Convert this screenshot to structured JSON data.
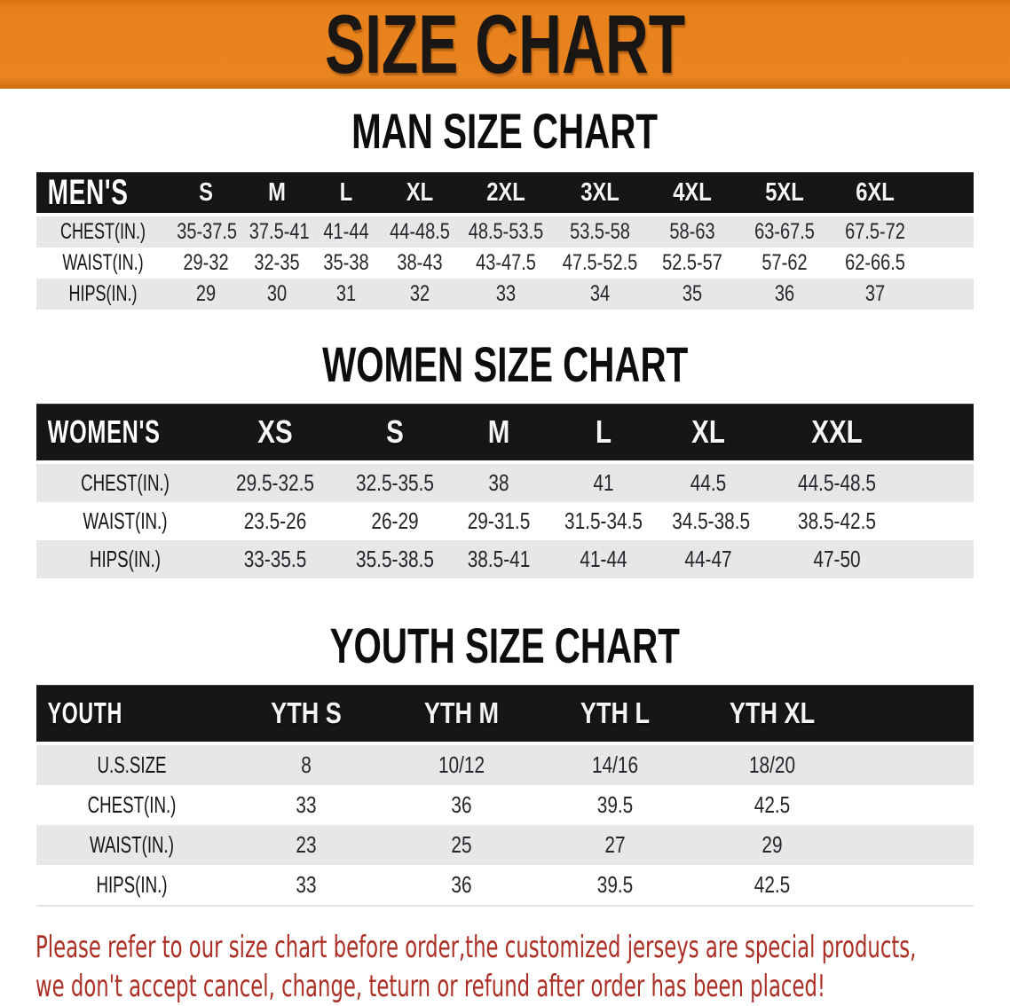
{
  "banner": {
    "title": "SIZE CHART",
    "bg_color": "#E8811B",
    "title_color": "#191613"
  },
  "sections": {
    "men_heading": "MAN SIZE CHART",
    "women_heading": "WOMEN SIZE CHART",
    "youth_heading": "YOUTH SIZE CHART"
  },
  "tables": {
    "men": {
      "header": [
        "MEN'S",
        "S",
        "M",
        "L",
        "XL",
        "2XL",
        "3XL",
        "4XL",
        "5XL",
        "6XL"
      ],
      "rows": [
        [
          "CHEST(IN.)",
          "35-37.5",
          "37.5-41",
          "41-44",
          "44-48.5",
          "48.5-53.5",
          "53.5-58",
          "58-63",
          "63-67.5",
          "67.5-72"
        ],
        [
          "WAIST(IN.)",
          "29-32",
          "32-35",
          "35-38",
          "38-43",
          "43-47.5",
          "47.5-52.5",
          "52.5-57",
          "57-62",
          "62-66.5"
        ],
        [
          "HIPS(IN.)",
          "29",
          "30",
          "31",
          "32",
          "33",
          "34",
          "35",
          "36",
          "37"
        ]
      ]
    },
    "women": {
      "header": [
        "WOMEN'S",
        "XS",
        "S",
        "M",
        "L",
        "XL",
        "XXL"
      ],
      "rows": [
        [
          "CHEST(IN.)",
          "29.5-32.5",
          "32.5-35.5",
          "38",
          "41",
          "44.5",
          "44.5-48.5"
        ],
        [
          "WAIST(IN.)",
          "23.5-26",
          "26-29",
          "29-31.5",
          "31.5-34.5",
          "34.5-38.5",
          "38.5-42.5"
        ],
        [
          "HIPS(IN.)",
          "33-35.5",
          "35.5-38.5",
          "38.5-41",
          "41-44",
          "44-47",
          "47-50"
        ]
      ]
    },
    "youth": {
      "header": [
        "YOUTH",
        "YTH S",
        "YTH M",
        "YTH L",
        "YTH XL"
      ],
      "rows": [
        [
          "U.S.SIZE",
          "8",
          "10/12",
          "14/16",
          "18/20"
        ],
        [
          "CHEST(IN.)",
          "33",
          "36",
          "39.5",
          "42.5"
        ],
        [
          "WAIST(IN.)",
          "23",
          "25",
          "27",
          "29"
        ],
        [
          "HIPS(IN.)",
          "33",
          "36",
          "39.5",
          "42.5"
        ]
      ]
    }
  },
  "disclaimer": {
    "line1": "Please refer to our size chart before order,the customized jerseys are special products,",
    "line2": "we don't accept cancel, change, teturn or refund after order has been placed!",
    "color": "#AB2F24"
  },
  "colors": {
    "table_header_bg": "#161616",
    "stripe_row_bg": "#E7E7E9",
    "table_text": "#26262A"
  }
}
